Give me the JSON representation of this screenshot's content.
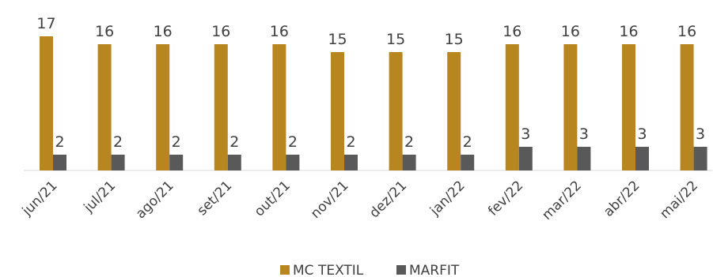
{
  "chart_data": {
    "type": "bar",
    "categories": [
      "jun/21",
      "jul/21",
      "ago/21",
      "set/21",
      "out/21",
      "nov/21",
      "dez/21",
      "jan/22",
      "fev/22",
      "mar/22",
      "abr/22",
      "mai/22"
    ],
    "series": [
      {
        "name": "MC TEXTIL",
        "color": "#B8861E",
        "values": [
          17,
          16,
          16,
          16,
          16,
          15,
          15,
          15,
          16,
          16,
          16,
          16
        ]
      },
      {
        "name": "MARFIT",
        "color": "#595959",
        "values": [
          2,
          2,
          2,
          2,
          2,
          2,
          2,
          2,
          3,
          3,
          3,
          3
        ]
      }
    ],
    "ylim": [
      0,
      17
    ],
    "grid": false,
    "data_labels": true,
    "legend_position": "bottom"
  }
}
